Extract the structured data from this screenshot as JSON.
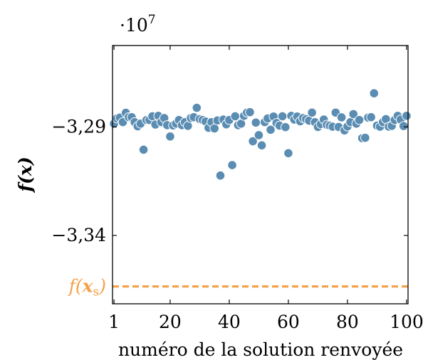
{
  "chart_data": {
    "type": "scatter",
    "xlabel": "numéro de la solution renvoyée",
    "ylabel": "f(x)",
    "y_multiplier": "·10",
    "y_multiplier_exponent": "7",
    "xlim": [
      0.5,
      100.5
    ],
    "ylim": [
      -3.3715,
      -3.2525
    ],
    "x_ticks": [
      1,
      20,
      40,
      60,
      80,
      100
    ],
    "x_tick_labels": [
      "1",
      "20",
      "40",
      "60",
      "80",
      "100"
    ],
    "y_ticks": [
      -3.29,
      -3.34
    ],
    "y_tick_labels": [
      "−3,29",
      "−3,34"
    ],
    "grid": false,
    "marker_color": "#5b8db3",
    "series": [
      {
        "x": [
          1,
          2,
          3,
          4,
          5,
          6,
          7,
          8,
          9,
          10,
          11,
          12,
          13,
          14,
          15,
          16,
          17,
          18,
          19,
          20,
          21,
          22,
          23,
          24,
          25,
          26,
          27,
          28,
          29,
          30,
          31,
          32,
          33,
          34,
          35,
          36,
          37,
          38,
          39,
          40,
          41,
          42,
          43,
          44,
          45,
          46,
          47,
          48,
          49,
          50,
          51,
          52,
          53,
          54,
          55,
          56,
          57,
          58,
          59,
          60,
          61,
          62,
          63,
          64,
          65,
          66,
          67,
          68,
          69,
          70,
          71,
          72,
          73,
          74,
          75,
          76,
          77,
          78,
          79,
          80,
          81,
          82,
          83,
          84,
          85,
          86,
          87,
          88,
          89,
          90,
          91,
          92,
          93,
          94,
          95,
          96,
          97,
          98,
          99,
          100
        ],
        "y": [
          -3.2885,
          -3.2861,
          -3.2857,
          -3.2878,
          -3.2835,
          -3.2855,
          -3.2855,
          -3.2878,
          -3.2897,
          -3.2885,
          -3.3005,
          -3.2868,
          -3.2868,
          -3.2851,
          -3.2889,
          -3.2849,
          -3.2878,
          -3.2859,
          -3.2892,
          -3.2944,
          -3.2893,
          -3.2885,
          -3.2868,
          -3.2892,
          -3.2878,
          -3.2895,
          -3.2859,
          -3.2855,
          -3.2812,
          -3.2864,
          -3.2868,
          -3.2875,
          -3.2904,
          -3.2878,
          -3.2907,
          -3.287,
          -3.3124,
          -3.2866,
          -3.2888,
          -3.2868,
          -3.3076,
          -3.2851,
          -3.2892,
          -3.2885,
          -3.2849,
          -3.2834,
          -3.2832,
          -3.2966,
          -3.288,
          -3.2938,
          -3.2985,
          -3.2878,
          -3.2861,
          -3.2913,
          -3.2852,
          -3.2882,
          -3.2894,
          -3.2851,
          -3.2901,
          -3.3021,
          -3.2849,
          -3.2866,
          -3.2852,
          -3.2874,
          -3.2859,
          -3.2864,
          -3.2871,
          -3.2834,
          -3.2878,
          -3.29,
          -3.2887,
          -3.2866,
          -3.289,
          -3.2894,
          -3.2899,
          -3.2834,
          -3.29,
          -3.2856,
          -3.2916,
          -3.2898,
          -3.2878,
          -3.2841,
          -3.2885,
          -3.2868,
          -3.2952,
          -3.295,
          -3.2857,
          -3.2855,
          -3.2745,
          -3.2894,
          -3.2899,
          -3.2878,
          -3.2864,
          -3.2899,
          -3.2895,
          -3.2868,
          -3.2849,
          -3.2866,
          -3.2896,
          -3.2849
        ]
      }
    ],
    "reference_line": {
      "label_prefix": "f(",
      "label_var": "x",
      "label_sub": "s",
      "label_suffix": ")",
      "y": -3.3635,
      "color": "#f4a24a",
      "style": "dashed"
    }
  }
}
